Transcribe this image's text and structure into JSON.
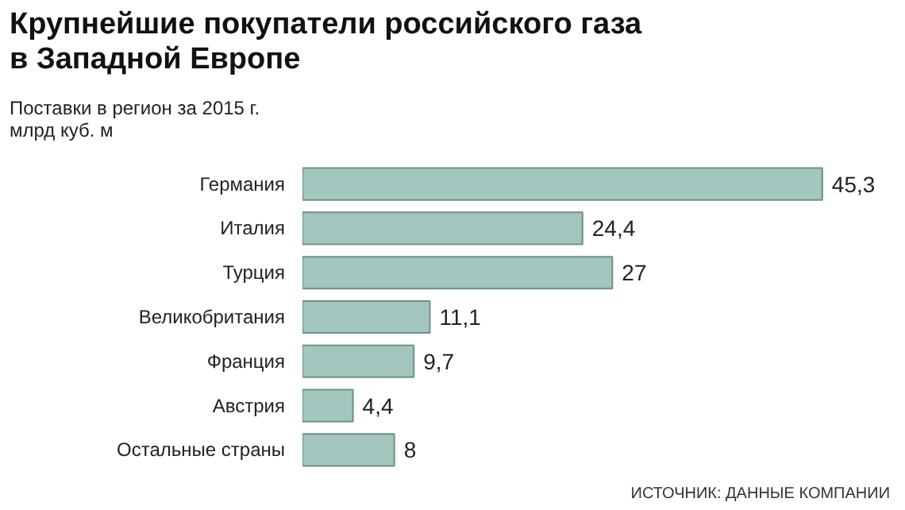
{
  "chart_data": {
    "type": "bar",
    "orientation": "horizontal",
    "title": "Крупнейшие покупатели российского газа в Западной Европе",
    "subtitle": "Поставки в регион за 2015 г.",
    "xlabel": "млрд куб. м",
    "categories": [
      "Германия",
      "Италия",
      "Турция",
      "Великобритания",
      "Франция",
      "Австрия",
      "Остальные страны"
    ],
    "values": [
      45.3,
      24.4,
      27,
      11.1,
      9.7,
      4.4,
      8
    ],
    "value_labels": [
      "45,3",
      "24,4",
      "27",
      "11,1",
      "9,7",
      "4,4",
      "8"
    ],
    "color": "#a3c6be",
    "annotations": [
      "ИСТОЧНИК: ДАННЫЕ КОМПАНИИ"
    ]
  }
}
